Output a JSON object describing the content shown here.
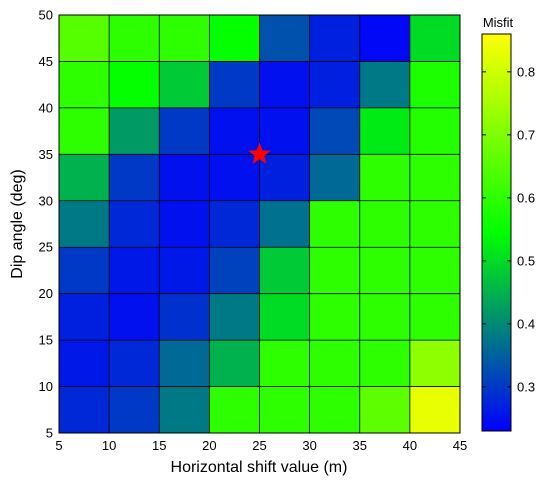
{
  "chart_data": {
    "type": "heatmap",
    "title": "",
    "xlabel": "Horizontal shift value (m)",
    "ylabel": "Dip angle (deg)",
    "xlim": [
      5,
      45
    ],
    "ylim": [
      5,
      50
    ],
    "x_edges": [
      5,
      10,
      15,
      20,
      25,
      30,
      35,
      40,
      45
    ],
    "y_edges": [
      5,
      10,
      15,
      20,
      25,
      30,
      35,
      40,
      45,
      50
    ],
    "xticks": [
      5,
      10,
      15,
      20,
      25,
      30,
      35,
      40,
      45
    ],
    "yticks": [
      5,
      10,
      15,
      20,
      25,
      30,
      35,
      40,
      45,
      50
    ],
    "colorbar": {
      "title": "Misfit",
      "min": 0.23,
      "max": 0.86,
      "ticks": [
        0.3,
        0.4,
        0.5,
        0.6,
        0.7,
        0.8
      ],
      "colormap": [
        "#0000ff",
        "#00ff00",
        "#ffff00"
      ]
    },
    "values_rows_top_to_bottom": [
      [
        0.65,
        0.6,
        0.6,
        0.55,
        0.33,
        0.27,
        0.24,
        0.5
      ],
      [
        0.6,
        0.55,
        0.48,
        0.3,
        0.25,
        0.27,
        0.38,
        0.58
      ],
      [
        0.6,
        0.42,
        0.3,
        0.25,
        0.25,
        0.32,
        0.52,
        0.59
      ],
      [
        0.45,
        0.3,
        0.25,
        0.25,
        0.27,
        0.36,
        0.6,
        0.6
      ],
      [
        0.38,
        0.28,
        0.25,
        0.28,
        0.37,
        0.6,
        0.6,
        0.6
      ],
      [
        0.3,
        0.26,
        0.26,
        0.31,
        0.48,
        0.6,
        0.6,
        0.6
      ],
      [
        0.27,
        0.25,
        0.29,
        0.38,
        0.5,
        0.6,
        0.6,
        0.6
      ],
      [
        0.26,
        0.28,
        0.36,
        0.45,
        0.6,
        0.6,
        0.6,
        0.72
      ],
      [
        0.28,
        0.3,
        0.38,
        0.6,
        0.6,
        0.6,
        0.66,
        0.83
      ]
    ],
    "marker": {
      "symbol": "star",
      "color": "#ff0000",
      "x": 25,
      "y": 35
    }
  }
}
